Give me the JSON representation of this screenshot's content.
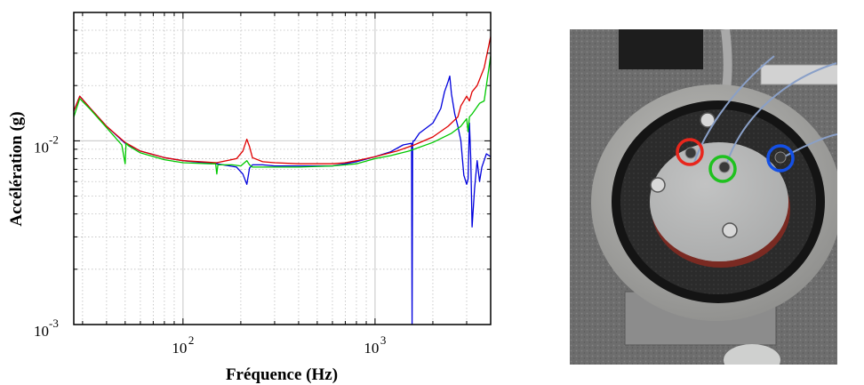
{
  "chart_data": {
    "type": "line",
    "xlabel": "Fréquence (Hz)",
    "ylabel": "Accélération (g)",
    "x_scale": "log",
    "y_scale": "log",
    "xlim": [
      27,
      4000
    ],
    "ylim": [
      0.001,
      0.05
    ],
    "grid": true,
    "x_ticks": [
      {
        "value": 100,
        "base": "10",
        "exp": "2"
      },
      {
        "value": 1000,
        "base": "10",
        "exp": "3"
      }
    ],
    "y_ticks": [
      {
        "value": 0.001,
        "base": "10",
        "exp": "-3"
      },
      {
        "value": 0.01,
        "base": "10",
        "exp": "-2"
      }
    ],
    "series": [
      {
        "color": "#e00000",
        "x": [
          27,
          29,
          33,
          40,
          50,
          60,
          80,
          100,
          150,
          190,
          205,
          215,
          222,
          230,
          260,
          300,
          400,
          500,
          600,
          700,
          800,
          1000,
          1300,
          1600,
          2000,
          2400,
          2700,
          2800,
          3000,
          3100,
          3200,
          3400,
          3700,
          4000
        ],
        "y": [
          0.0145,
          0.0175,
          0.015,
          0.012,
          0.0098,
          0.0088,
          0.0081,
          0.0078,
          0.0076,
          0.008,
          0.0088,
          0.0102,
          0.0093,
          0.0081,
          0.0077,
          0.0076,
          0.0075,
          0.0075,
          0.0075,
          0.0076,
          0.0078,
          0.0082,
          0.0088,
          0.0095,
          0.0105,
          0.012,
          0.0135,
          0.0155,
          0.0175,
          0.0165,
          0.0185,
          0.02,
          0.025,
          0.037
        ]
      },
      {
        "color": "#00c800",
        "x": [
          27,
          29,
          33,
          40,
          48,
          50,
          50.5,
          52,
          60,
          80,
          100,
          140,
          148,
          150,
          152,
          180,
          200,
          215,
          222,
          230,
          300,
          400,
          600,
          800,
          1000,
          1200,
          1500,
          2000,
          2500,
          2800,
          3000,
          3050,
          3100,
          3200,
          3500,
          3700,
          4000
        ],
        "y": [
          0.0135,
          0.017,
          0.0148,
          0.0118,
          0.0095,
          0.0075,
          0.0097,
          0.0094,
          0.0086,
          0.0079,
          0.0076,
          0.0075,
          0.0075,
          0.0066,
          0.0074,
          0.0074,
          0.0073,
          0.0078,
          0.0074,
          0.0072,
          0.0072,
          0.0072,
          0.0073,
          0.0075,
          0.008,
          0.0083,
          0.0088,
          0.0098,
          0.011,
          0.012,
          0.0132,
          0.0112,
          0.0135,
          0.014,
          0.016,
          0.0165,
          0.029
        ]
      },
      {
        "color": "#0000dd",
        "x": [
          27,
          29,
          33,
          40,
          50,
          60,
          80,
          100,
          150,
          190,
          205,
          215,
          222,
          230,
          260,
          300,
          400,
          600,
          700,
          800,
          1000,
          1200,
          1400,
          1550,
          1560,
          1570,
          1580,
          1600,
          1700,
          2000,
          2200,
          2300,
          2400,
          2450,
          2500,
          2600,
          2700,
          2800,
          2850,
          2900,
          3000,
          3050,
          3100,
          3150,
          3200,
          3300,
          3400,
          3500,
          3600,
          3800,
          4000
        ],
        "y": [
          0.0145,
          0.0175,
          0.015,
          0.012,
          0.0097,
          0.0088,
          0.0081,
          0.0078,
          0.0075,
          0.0072,
          0.0066,
          0.0058,
          0.0071,
          0.0074,
          0.0074,
          0.0073,
          0.0073,
          0.0073,
          0.0075,
          0.0077,
          0.0082,
          0.0087,
          0.0095,
          0.0097,
          0.001,
          0.0095,
          0.01,
          0.01,
          0.011,
          0.0125,
          0.015,
          0.0185,
          0.021,
          0.0225,
          0.018,
          0.014,
          0.012,
          0.01,
          0.008,
          0.0065,
          0.0058,
          0.0062,
          0.0125,
          0.008,
          0.0034,
          0.0055,
          0.0078,
          0.006,
          0.0072,
          0.0085,
          0.0082
        ]
      }
    ]
  },
  "photo": {
    "base_color": "#6d6d6d",
    "plate_color": "#b7b8b8",
    "foam_color": "#2b2b2b",
    "markers": [
      {
        "color": "#e8261c"
      },
      {
        "color": "#1fc11f"
      },
      {
        "color": "#1450e6"
      }
    ]
  }
}
